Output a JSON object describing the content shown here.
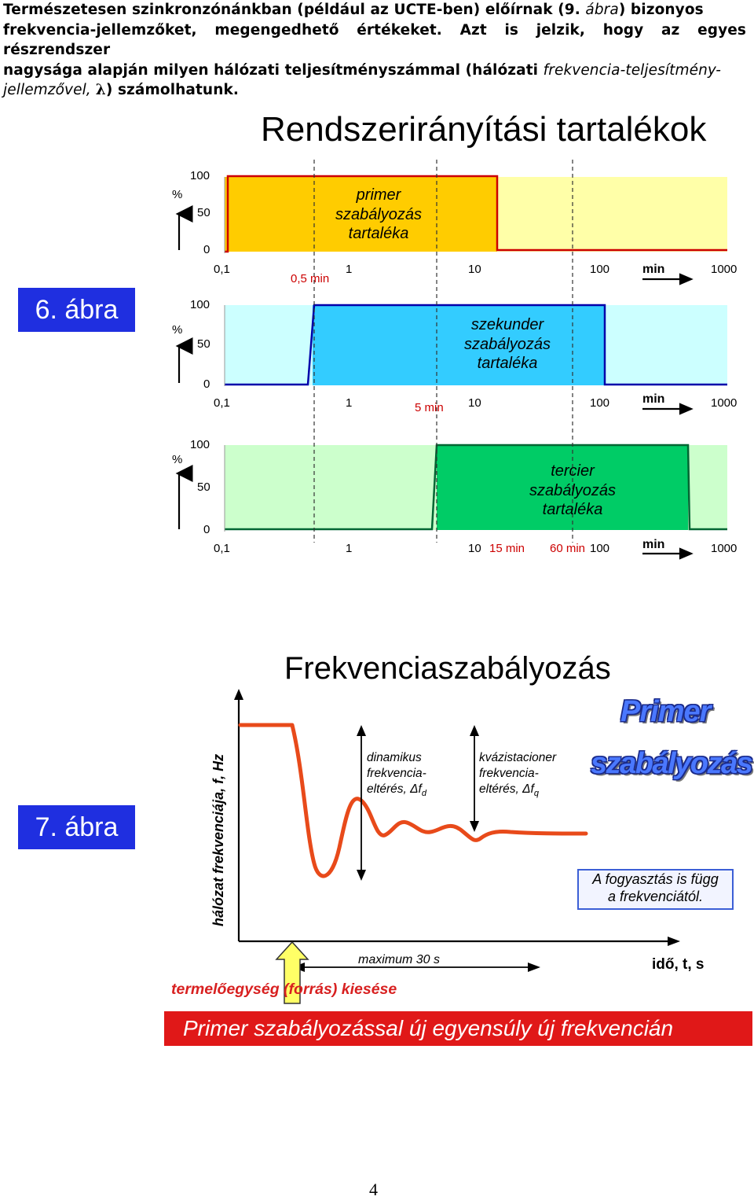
{
  "intro": {
    "line1_a": "Természetesen szinkronzónánkban (például az UCTE-ben) előírnak (9. ",
    "line1_i": "ábra",
    "line1_b": ") bizonyos",
    "line2": "frekvencia-jellemzőket, megengedhető értékeket. Azt is jelzik, hogy az egyes részrendszer",
    "line3_a": "nagysága alapján milyen hálózati teljesítményszámmal (hálózati ",
    "line3_i": "frekvencia-teljesítmény-",
    "line4_i": "jellemzővel, ",
    "line4_sym": "λ",
    "line4_b": ") számolhatunk."
  },
  "fig6": {
    "badge": "6. ábra",
    "title": "Rendszerirányítási tartalékok",
    "panels": [
      {
        "pct": "%",
        "y100": "100",
        "y50": "50",
        "y0": "0",
        "box_label": [
          "primer",
          "szabályozás",
          "tartaléka"
        ],
        "x_ticks": [
          "0,1",
          "1",
          "10",
          "100",
          "1000"
        ],
        "marker": "0,5 min",
        "unit": "min"
      },
      {
        "pct": "%",
        "y100": "100",
        "y50": "50",
        "y0": "0",
        "box_label": [
          "szekunder",
          "szabályozás",
          "tartaléka"
        ],
        "x_ticks": [
          "0,1",
          "1",
          "10",
          "100",
          "1000"
        ],
        "marker": "5 min",
        "unit": "min"
      },
      {
        "pct": "%",
        "y100": "100",
        "y50": "50",
        "y0": "0",
        "box_label": [
          "tercier",
          "szabályozás",
          "tartaléka"
        ],
        "x_ticks": [
          "0,1",
          "1",
          "10",
          "100",
          "1000"
        ],
        "marker_a": "15 min",
        "marker_b": "60 min",
        "unit": "min"
      }
    ],
    "colors": {
      "primer_fill": "#ffcc00",
      "primer_bg": "#ffffa8",
      "sek_fill": "#33ccff",
      "sek_bg": "#ccffff",
      "ter_fill": "#00cc66",
      "ter_bg": "#ccffcc",
      "line_primer": "#cc0000",
      "line_sek": "#0000aa",
      "line_ter": "#006633"
    }
  },
  "fig7": {
    "badge": "7. ábra",
    "title": "Frekvenciaszabályozás",
    "y_axis_label": "hálózat frekvenciája, f, Hz",
    "x_axis_label": "idő, t, s",
    "note_dyn": [
      "dinamikus",
      "frekvencia-",
      "eltérés, "
    ],
    "note_dyn_sym": "Δf",
    "note_dyn_sub": "d",
    "note_qs": [
      "kvázistacioner",
      "frekvencia-",
      "eltérés, "
    ],
    "note_qs_sym": "Δf",
    "note_qs_sub": "q",
    "wordart_1": "Primer",
    "wordart_2": "szabályozás",
    "consumption": [
      "A fogyasztás is függ",
      "a frekvenciától."
    ],
    "max_label": "maximum 30 s",
    "loss_label": "termelőegység (forrás) kiesése",
    "banner": "Primer szabályozással új egyensúly új frekvencián",
    "colors": {
      "curve": "#e84a1a",
      "banner": "#e01818",
      "arrow_fill": "#ffff66"
    }
  },
  "page_number": "4"
}
